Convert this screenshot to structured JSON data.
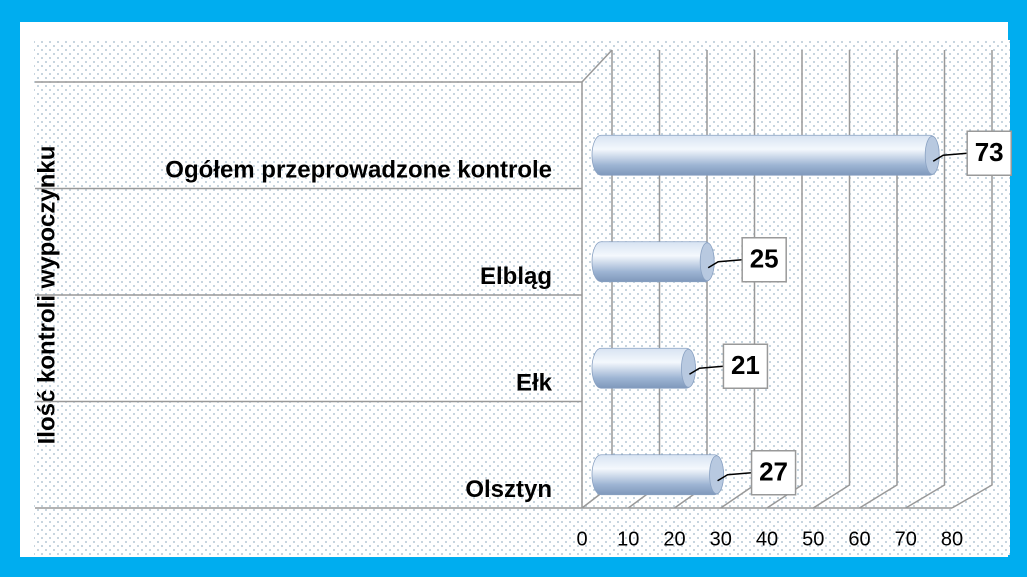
{
  "chart_data": {
    "type": "bar",
    "orientation": "horizontal",
    "y_axis_label": "Ilość kontroli wypoczynku",
    "categories": [
      "Ogółem przeprowadzone kontrole",
      "Elbląg",
      "Ełk",
      "Olsztyn"
    ],
    "values": [
      73,
      25,
      21,
      27
    ],
    "color": "#a9bfdc",
    "xlim": [
      0,
      80
    ],
    "xticks": [
      0,
      10,
      20,
      30,
      40,
      50,
      60,
      70,
      80
    ],
    "grid": true
  }
}
